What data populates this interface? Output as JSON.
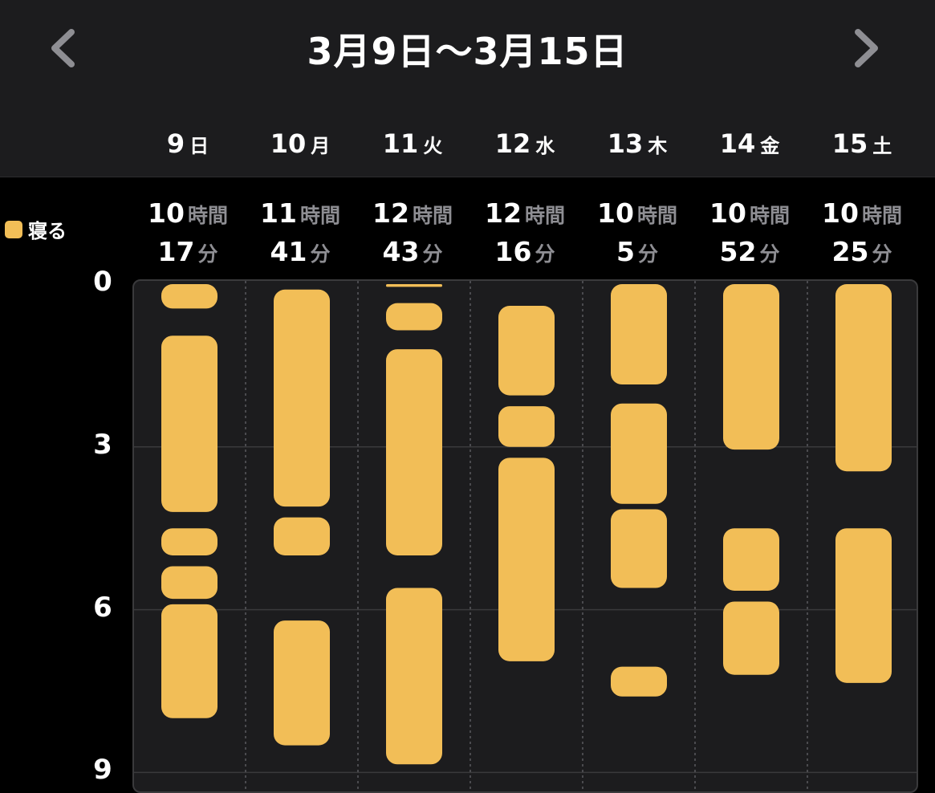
{
  "header": {
    "title": "3月9日～3月15日",
    "prev_icon": "chevron-left-icon",
    "next_icon": "chevron-right-icon"
  },
  "legend": {
    "label": "寝る",
    "color": "#f2be57"
  },
  "units": {
    "hours": "時間",
    "minutes": "分"
  },
  "days": [
    {
      "num": "9",
      "weekday": "日",
      "hours": "10",
      "minutes": "17"
    },
    {
      "num": "10",
      "weekday": "月",
      "hours": "11",
      "minutes": "41"
    },
    {
      "num": "11",
      "weekday": "火",
      "hours": "12",
      "minutes": "43"
    },
    {
      "num": "12",
      "weekday": "水",
      "hours": "12",
      "minutes": "16"
    },
    {
      "num": "13",
      "weekday": "木",
      "hours": "10",
      "minutes": "5"
    },
    {
      "num": "14",
      "weekday": "金",
      "hours": "10",
      "minutes": "52"
    },
    {
      "num": "15",
      "weekday": "土",
      "hours": "10",
      "minutes": "25"
    }
  ],
  "y_ticks": [
    "0",
    "3",
    "6",
    "9"
  ],
  "chart_data": {
    "type": "bar",
    "categories": [
      "9 日",
      "10 月",
      "11 火",
      "12 水",
      "13 木",
      "14 金",
      "15 土"
    ],
    "y_axis": {
      "ticks": [
        0,
        3,
        6,
        9
      ],
      "direction": "down",
      "unit": "hour of day"
    },
    "grid": true,
    "color": "#f2be57",
    "series": [
      {
        "name": "寝る",
        "segments": [
          [
            [
              0.0,
              0.45
            ],
            [
              0.95,
              4.2
            ],
            [
              4.5,
              5.0
            ],
            [
              5.2,
              5.8
            ],
            [
              5.9,
              8.0
            ]
          ],
          [
            [
              0.1,
              4.1
            ],
            [
              4.3,
              5.0
            ],
            [
              6.2,
              8.5
            ]
          ],
          [
            [
              0.0,
              0.05
            ],
            [
              0.35,
              0.85
            ],
            [
              1.2,
              5.0
            ],
            [
              5.6,
              8.85
            ]
          ],
          [
            [
              0.4,
              2.05
            ],
            [
              2.25,
              3.0
            ],
            [
              3.2,
              6.95
            ]
          ],
          [
            [
              0.0,
              1.85
            ],
            [
              2.2,
              4.05
            ],
            [
              4.15,
              5.6
            ],
            [
              7.05,
              7.6
            ]
          ],
          [
            [
              0.0,
              3.05
            ],
            [
              4.5,
              5.65
            ],
            [
              5.85,
              7.2
            ]
          ],
          [
            [
              0.0,
              3.45
            ],
            [
              4.5,
              7.35
            ]
          ]
        ]
      }
    ]
  }
}
